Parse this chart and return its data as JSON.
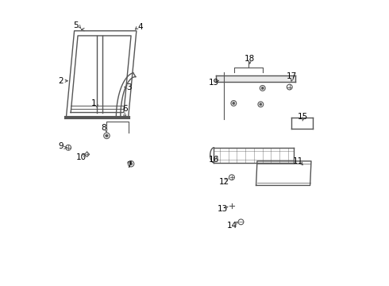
{
  "background_color": "#ffffff",
  "line_color": "#555555",
  "label_color": "#000000",
  "fig_width": 4.9,
  "fig_height": 3.6,
  "dpi": 100,
  "xlim": [
    0,
    10
  ],
  "ylim": [
    0,
    10.5
  ]
}
